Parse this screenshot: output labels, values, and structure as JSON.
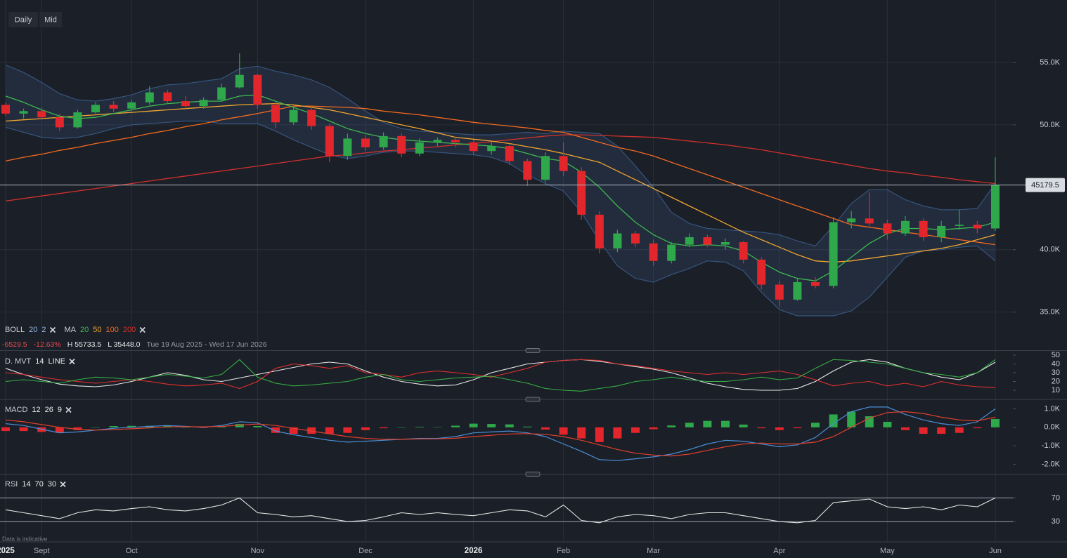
{
  "toolbar": {
    "buttons": [
      "Daily",
      "Mid"
    ]
  },
  "footnote": "Data is indicative",
  "chart_data": [
    {
      "type": "candlestick",
      "categories": [
        "2025",
        null,
        "Sept",
        null,
        null,
        null,
        null,
        "Oct",
        null,
        null,
        null,
        null,
        null,
        null,
        "Nov",
        null,
        null,
        null,
        null,
        null,
        "Dec",
        null,
        null,
        null,
        null,
        null,
        "2026",
        null,
        null,
        null,
        null,
        "Feb",
        null,
        null,
        null,
        null,
        "Mar",
        null,
        null,
        null,
        null,
        null,
        null,
        "Apr",
        null,
        null,
        null,
        null,
        null,
        "May",
        null,
        null,
        null,
        null,
        null,
        "Jun"
      ],
      "open": [
        51600,
        50900,
        51100,
        50600,
        49800,
        51000,
        51600,
        51300,
        51800,
        52600,
        51900,
        51500,
        52000,
        53000,
        54000,
        51600,
        50200,
        51200,
        49900,
        47500,
        48900,
        48200,
        49100,
        47700,
        48600,
        48800,
        48600,
        47900,
        48300,
        47100,
        45600,
        47500,
        46300,
        42800,
        40100,
        41300,
        40500,
        39100,
        40400,
        41000,
        40400,
        40600,
        39200,
        37200,
        36000,
        37400,
        37100,
        42200,
        42500,
        42100,
        41300,
        42300,
        41000,
        41900,
        42000,
        41700
      ],
      "high": [
        51800,
        51300,
        51400,
        50900,
        51200,
        51800,
        51900,
        52000,
        53100,
        52800,
        52300,
        52200,
        53300,
        55733.5,
        54100,
        51800,
        51500,
        51400,
        50100,
        49300,
        49200,
        49400,
        49300,
        48900,
        49000,
        49000,
        48800,
        48600,
        48500,
        47300,
        47800,
        48600,
        46600,
        43100,
        41600,
        41500,
        40800,
        40600,
        41300,
        41200,
        40900,
        40700,
        39400,
        37500,
        37700,
        37800,
        42600,
        43100,
        44600,
        42400,
        42700,
        42500,
        42300,
        43200,
        42300,
        47400
      ],
      "low": [
        50700,
        50500,
        50400,
        49500,
        49700,
        50900,
        51000,
        51100,
        51600,
        51700,
        51200,
        51300,
        51900,
        52900,
        51300,
        49700,
        50000,
        49600,
        47000,
        47200,
        47900,
        48000,
        47400,
        47500,
        48300,
        48200,
        47600,
        47600,
        46800,
        45100,
        45400,
        45900,
        42400,
        39700,
        39800,
        40200,
        38700,
        38900,
        40200,
        40200,
        40000,
        38900,
        36800,
        35448,
        35900,
        36900,
        36900,
        41700,
        41900,
        40800,
        41100,
        40700,
        40600,
        41600,
        41300,
        41500
      ],
      "close": [
        50900,
        51100,
        50600,
        49800,
        51000,
        51600,
        51300,
        51800,
        52600,
        51900,
        51500,
        52000,
        53000,
        54000,
        51600,
        50200,
        51200,
        49900,
        47500,
        48900,
        48200,
        49100,
        47700,
        48600,
        48800,
        48600,
        47900,
        48300,
        47100,
        45600,
        47500,
        46300,
        42800,
        40100,
        41300,
        40500,
        39100,
        40400,
        41000,
        40400,
        40600,
        39200,
        37200,
        36000,
        37400,
        37100,
        42200,
        42500,
        42100,
        41300,
        42300,
        41000,
        41900,
        42000,
        41700,
        45179.5
      ],
      "up_color": "#2ea84a",
      "down_color": "#e3262b",
      "legend": {
        "boll": {
          "label": "BOLL",
          "params": [
            "20",
            "2"
          ],
          "color": "#8fb8e8",
          "band_fill": "rgba(70,110,170,0.17)",
          "band_line": "#36557e"
        },
        "ma": {
          "label": "MA",
          "periods": [
            "20",
            "50",
            "100",
            "200"
          ],
          "colors": [
            "#3fb950",
            "#f2a72e",
            "#f26a21",
            "#d1312c"
          ]
        }
      },
      "ma_values": [
        [
          52300,
          51800,
          51200,
          50700,
          50500,
          50600,
          50900,
          51200,
          51500,
          51700,
          51800,
          51900,
          51900,
          52300,
          52400,
          51900,
          51400,
          50900,
          50300,
          49700,
          49300,
          49000,
          48800,
          48700,
          48600,
          48500,
          48400,
          48300,
          48100,
          47700,
          47300,
          47100,
          46200,
          45000,
          43500,
          42200,
          41200,
          40500,
          40300,
          40400,
          40300,
          39900,
          39000,
          38200,
          37700,
          37500,
          38300,
          39400,
          40500,
          41300,
          41700,
          41700,
          41600,
          41700,
          41800,
          42200
        ],
        [
          50300,
          50400,
          50500,
          50600,
          50700,
          50800,
          50900,
          51000,
          51100,
          51200,
          51300,
          51400,
          51500,
          51600,
          51650,
          51700,
          51600,
          51400,
          51200,
          50900,
          50600,
          50300,
          50000,
          49700,
          49350,
          49000,
          48850,
          48700,
          48500,
          48250,
          48000,
          47700,
          47350,
          47000,
          46300,
          45600,
          44900,
          44200,
          43500,
          42800,
          42100,
          41400,
          40800,
          40200,
          39600,
          39100,
          39000,
          39100,
          39300,
          39500,
          39700,
          39900,
          40100,
          40400,
          40800,
          41200
        ],
        [
          47100,
          47400,
          47650,
          47950,
          48200,
          48500,
          48750,
          49000,
          49300,
          49550,
          49850,
          50100,
          50400,
          50650,
          50900,
          51200,
          51500,
          51500,
          51450,
          51400,
          51300,
          51100,
          50950,
          50800,
          50600,
          50400,
          50200,
          50050,
          49900,
          49750,
          49550,
          49400,
          49000,
          48600,
          48200,
          47900,
          47500,
          47000,
          46500,
          46000,
          45500,
          45000,
          44500,
          44000,
          43500,
          43000,
          42500,
          42000,
          41800,
          41600,
          41400,
          41200,
          41000,
          40800,
          40600,
          40400
        ],
        [
          43900,
          44100,
          44300,
          44500,
          44700,
          44900,
          45100,
          45300,
          45500,
          45700,
          45900,
          46100,
          46300,
          46500,
          46700,
          46900,
          47100,
          47300,
          47500,
          47600,
          47750,
          47900,
          48000,
          48150,
          48250,
          48400,
          48500,
          48650,
          48800,
          48950,
          49100,
          49200,
          49200,
          49150,
          49100,
          49050,
          49000,
          48850,
          48700,
          48550,
          48400,
          48200,
          48000,
          47750,
          47500,
          47250,
          47000,
          46750,
          46500,
          46300,
          46150,
          45950,
          45800,
          45600,
          45450,
          45300
        ]
      ],
      "bands": {
        "upper": [
          54800,
          54200,
          53400,
          52500,
          52000,
          51900,
          52100,
          52400,
          52900,
          53200,
          53300,
          53500,
          53700,
          54500,
          54700,
          54300,
          54000,
          53600,
          53000,
          52100,
          51100,
          50200,
          49700,
          49500,
          49400,
          49300,
          49200,
          49200,
          49300,
          49400,
          49300,
          49500,
          49400,
          49300,
          48300,
          46700,
          45000,
          43000,
          42100,
          41700,
          41600,
          41500,
          41400,
          41200,
          40700,
          40300,
          41900,
          43700,
          44800,
          44800,
          44000,
          43500,
          43200,
          43200,
          43300,
          45300
        ],
        "lower": [
          49800,
          49400,
          49000,
          48900,
          49000,
          49300,
          49700,
          50000,
          50100,
          50200,
          50300,
          50300,
          50100,
          50100,
          50100,
          49500,
          48800,
          48200,
          47600,
          47300,
          47500,
          47800,
          47900,
          47900,
          47800,
          47700,
          47600,
          47400,
          46900,
          46000,
          45300,
          44700,
          43000,
          40700,
          38700,
          37700,
          37400,
          38000,
          38500,
          39100,
          39000,
          38300,
          36600,
          35200,
          34700,
          34700,
          34700,
          35100,
          36200,
          37800,
          39400,
          39900,
          40000,
          40200,
          40300,
          39100
        ]
      },
      "stats": {
        "change": "-6529.5",
        "change_pct": "-12.63%",
        "high": "H 55733.5",
        "low": "L 35448.0",
        "range": "Tue 19 Aug 2025 - Wed 17 Jun 2026"
      },
      "ylim": [
        32000,
        60000
      ],
      "yticks": [
        {
          "value": 35000,
          "label": "35.0K"
        },
        {
          "value": 40000,
          "label": "40.0K"
        },
        {
          "value": 50000,
          "label": "50.0K"
        },
        {
          "value": 55000,
          "label": "55.0K"
        }
      ],
      "grid": true,
      "grid_color": "#2a2f39"
    },
    {
      "type": "line",
      "label": "D. MVT",
      "params": [
        "14",
        "LINE"
      ],
      "series": [
        {
          "color": "#e8e8e8",
          "values": [
            35,
            28,
            22,
            17,
            15,
            14,
            16,
            20,
            25,
            30,
            27,
            22,
            20,
            24,
            28,
            32,
            36,
            40,
            42,
            40,
            32,
            25,
            20,
            17,
            15,
            16,
            22,
            30,
            35,
            40,
            42,
            44,
            45,
            43,
            40,
            37,
            34,
            30,
            24,
            18,
            14,
            11,
            10,
            10,
            12,
            20,
            32,
            42,
            45,
            42,
            35,
            30,
            25,
            22,
            30,
            42
          ]
        },
        {
          "color": "#e0302e",
          "values": [
            30,
            28,
            25,
            22,
            20,
            18,
            20,
            22,
            20,
            17,
            15,
            16,
            18,
            12,
            20,
            35,
            40,
            38,
            35,
            38,
            30,
            28,
            25,
            30,
            32,
            30,
            28,
            25,
            30,
            35,
            42,
            44,
            45,
            44,
            40,
            38,
            35,
            32,
            30,
            28,
            30,
            28,
            30,
            32,
            28,
            22,
            15,
            18,
            20,
            15,
            18,
            14,
            20,
            16,
            14,
            13
          ]
        },
        {
          "color": "#35b045",
          "values": [
            20,
            22,
            20,
            18,
            22,
            25,
            24,
            22,
            25,
            28,
            26,
            24,
            28,
            45,
            25,
            18,
            15,
            16,
            18,
            20,
            25,
            28,
            22,
            20,
            22,
            24,
            25,
            26,
            22,
            18,
            12,
            10,
            9,
            12,
            15,
            20,
            22,
            25,
            22,
            20,
            20,
            22,
            25,
            22,
            24,
            35,
            45,
            44,
            42,
            40,
            35,
            30,
            28,
            25,
            30,
            45
          ]
        }
      ],
      "ylim": [
        2,
        54
      ],
      "yticks": [
        10,
        20,
        30,
        40,
        50
      ],
      "grid": false,
      "grid_color": "#2a2f39"
    },
    {
      "type": "macd",
      "label": "MACD",
      "params": [
        "12",
        "26",
        "9"
      ],
      "series": [
        {
          "color": "#4a8fd8",
          "values": [
            200,
            100,
            -100,
            -300,
            -250,
            -150,
            -50,
            0,
            50,
            100,
            50,
            0,
            100,
            300,
            250,
            -200,
            -400,
            -550,
            -700,
            -800,
            -750,
            -700,
            -650,
            -600,
            -600,
            -500,
            -300,
            -250,
            -200,
            -300,
            -500,
            -900,
            -1300,
            -1750,
            -1800,
            -1700,
            -1600,
            -1450,
            -1200,
            -900,
            -700,
            -750,
            -900,
            -1050,
            -950,
            -550,
            200,
            850,
            1100,
            1100,
            700,
            400,
            200,
            100,
            300,
            1000
          ]
        },
        {
          "color": "#e0402e",
          "values": [
            400,
            300,
            150,
            0,
            -100,
            -150,
            -120,
            -80,
            -30,
            20,
            40,
            30,
            50,
            120,
            180,
            100,
            -50,
            -200,
            -350,
            -500,
            -600,
            -650,
            -650,
            -630,
            -620,
            -590,
            -500,
            -430,
            -360,
            -340,
            -380,
            -500,
            -700,
            -950,
            -1200,
            -1400,
            -1500,
            -1550,
            -1450,
            -1250,
            -1050,
            -900,
            -850,
            -900,
            -900,
            -800,
            -500,
            0,
            500,
            800,
            850,
            750,
            550,
            400,
            350,
            550
          ]
        }
      ],
      "histogram": [
        -200,
        -200,
        -250,
        -300,
        -150,
        0,
        70,
        80,
        80,
        80,
        10,
        -30,
        50,
        180,
        70,
        -300,
        -350,
        -350,
        -350,
        -300,
        -150,
        -50,
        0,
        30,
        20,
        90,
        200,
        180,
        160,
        40,
        -120,
        -400,
        -600,
        -800,
        -600,
        -300,
        -100,
        100,
        250,
        350,
        350,
        150,
        -50,
        -150,
        -50,
        250,
        700,
        850,
        600,
        300,
        -150,
        -350,
        -350,
        -300,
        -50,
        450
      ],
      "up_color": "#2ea84a",
      "down_color": "#e3262b",
      "ylim": [
        -2400,
        1400
      ],
      "yticks": [
        {
          "value": 1000,
          "label": "1.0K"
        },
        {
          "value": 0,
          "label": "0.0K"
        },
        {
          "value": -1000,
          "label": "-1.0K"
        },
        {
          "value": -2000,
          "label": "-2.0K"
        }
      ],
      "grid": false,
      "grid_color": "#2a2f39"
    },
    {
      "type": "line",
      "label": "RSI",
      "params": [
        "14",
        "70",
        "30"
      ],
      "series": [
        {
          "color": "#e6e6e6",
          "values": [
            50,
            45,
            40,
            35,
            45,
            50,
            48,
            52,
            55,
            50,
            48,
            52,
            58,
            70,
            45,
            42,
            38,
            40,
            35,
            30,
            32,
            38,
            45,
            42,
            45,
            42,
            40,
            45,
            50,
            48,
            38,
            58,
            32,
            28,
            38,
            42,
            40,
            35,
            42,
            45,
            45,
            40,
            35,
            30,
            28,
            32,
            62,
            65,
            68,
            55,
            52,
            55,
            50,
            58,
            55,
            70
          ]
        }
      ],
      "ylim": [
        0,
        100
      ],
      "yticks": [
        30,
        70
      ],
      "grid": true,
      "grid_color": "#9aa3b5"
    }
  ]
}
